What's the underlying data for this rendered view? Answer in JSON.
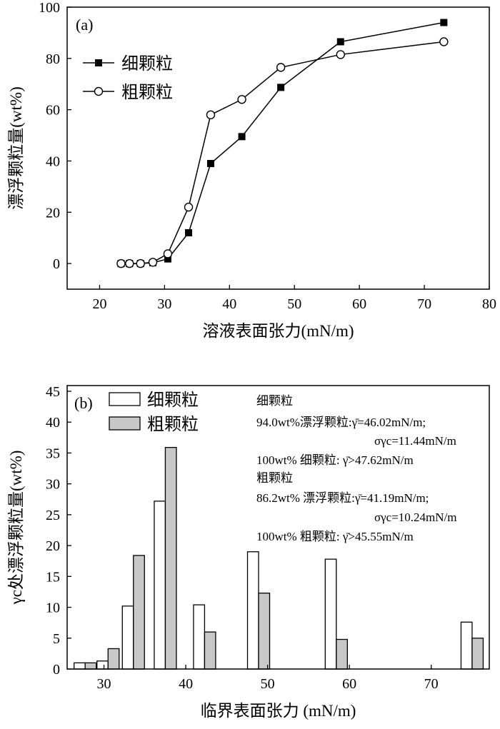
{
  "chart_data": [
    {
      "type": "line",
      "panel_label": "(a)",
      "xlabel": "溶液表面张力(mN/m)",
      "ylabel": "漂浮颗粒量(wt%)",
      "xlim": [
        15,
        80
      ],
      "ylim": [
        -10,
        100
      ],
      "xticks": [
        20,
        30,
        40,
        50,
        60,
        70,
        80
      ],
      "yticks": [
        0,
        20,
        40,
        60,
        80,
        100
      ],
      "legend_position": "upper-left",
      "series": [
        {
          "name": "细颗粒",
          "marker": "filled-square",
          "x": [
            23.3,
            24.6,
            26.3,
            28.2,
            30.5,
            33.7,
            37.1,
            41.9,
            47.9,
            57.1,
            73.0
          ],
          "y": [
            0,
            0,
            0,
            0.3,
            1.8,
            12,
            39,
            49.5,
            68.7,
            86.5,
            94
          ]
        },
        {
          "name": "粗颗粒",
          "marker": "open-circle",
          "x": [
            23.3,
            24.6,
            26.3,
            28.2,
            30.5,
            33.7,
            37.1,
            41.9,
            47.9,
            57.1,
            73.0
          ],
          "y": [
            0,
            0,
            0,
            0.5,
            3.8,
            22,
            58,
            64,
            76.5,
            81.5,
            86.5
          ]
        }
      ]
    },
    {
      "type": "bar",
      "panel_label": "(b)",
      "xlabel": "临界表面张力 (mN/m)",
      "ylabel": "γc处漂浮颗粒量(wt%)",
      "xlim": [
        25.5,
        77.1
      ],
      "ylim": [
        0,
        45
      ],
      "xticks": [
        30,
        40,
        50,
        60,
        70
      ],
      "yticks": [
        0,
        5,
        10,
        15,
        20,
        25,
        30,
        35,
        40,
        45
      ],
      "legend_position": "upper-left",
      "categories_x": [
        27.7,
        30.5,
        33.6,
        37.5,
        42.3,
        48.9,
        58.4,
        75.0
      ],
      "series": [
        {
          "name": "细颗粒",
          "color": "#ffffff",
          "values": [
            1.0,
            1.3,
            10.2,
            27.2,
            10.4,
            19.0,
            17.8,
            7.6
          ]
        },
        {
          "name": "粗颗粒",
          "color": "#c8c8c8",
          "values": [
            1.0,
            3.3,
            18.4,
            35.9,
            6.0,
            12.3,
            4.8,
            5.0
          ]
        }
      ],
      "annotations": [
        "细颗粒",
        "94.0wt%漂浮颗粒:γ̄=46.02mN/m;",
        "σγc=11.44mN/m",
        "100wt% 细颗粒: γ̄>47.62mN/m",
        "粗颗粒",
        "86.2wt% 漂浮颗粒:γ̄=41.19mN/m;",
        "σγc=10.24mN/m",
        "100wt% 粗颗粒: γ̄>45.55mN/m"
      ]
    }
  ]
}
